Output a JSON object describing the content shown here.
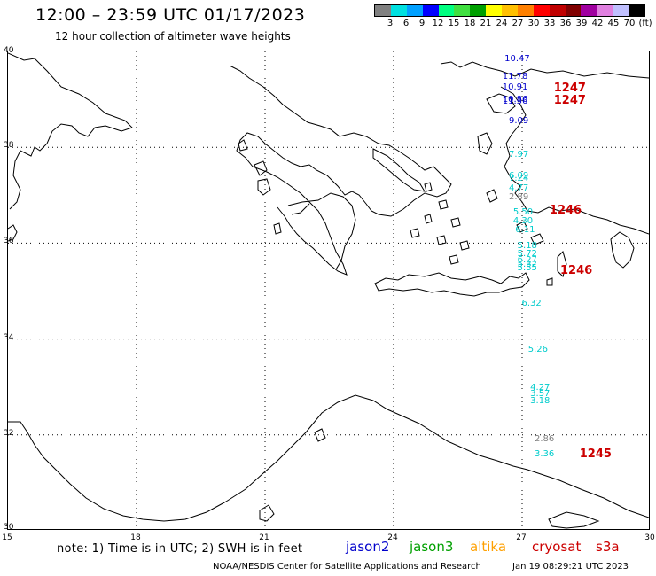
{
  "title": "12:00 – 23:59 UTC 01/17/2023",
  "subtitle": "12 hour collection of altimeter wave heights",
  "colorbar": {
    "colors": [
      "#808080",
      "#00e0e0",
      "#00a0ff",
      "#0000ff",
      "#00ff80",
      "#40e040",
      "#00a000",
      "#ffff00",
      "#ffc000",
      "#ff8000",
      "#ff0000",
      "#c00000",
      "#800000",
      "#a000a0",
      "#e080e0",
      "#c0c0ff",
      "#000000"
    ],
    "labels": [
      "3",
      "6",
      "9",
      "12",
      "15",
      "18",
      "21",
      "24",
      "27",
      "30",
      "33",
      "36",
      "39",
      "42",
      "45",
      "70",
      "(ft)"
    ]
  },
  "axes": {
    "lon_ticks": [
      "15",
      "18",
      "21",
      "24",
      "27",
      "30"
    ],
    "lat_ticks": [
      "40",
      "38",
      "36",
      "34",
      "32",
      "30"
    ]
  },
  "observations": [
    {
      "value": "10.47",
      "color": "#0000cc",
      "lon": 26.9,
      "lat": 39.82
    },
    {
      "value": "11.78",
      "color": "#0000cc",
      "lon": 26.85,
      "lat": 39.45
    },
    {
      "value": "10.91",
      "color": "#0000cc",
      "lon": 26.85,
      "lat": 39.22
    },
    {
      "value": "10.86",
      "color": "#0000cc",
      "lon": 26.85,
      "lat": 38.97
    },
    {
      "value": "11.36",
      "color": "#0000cc",
      "lon": 26.85,
      "lat": 38.92
    },
    {
      "value": "9.09",
      "color": "#0000cc",
      "lon": 27.0,
      "lat": 38.52
    },
    {
      "value": "7.97",
      "color": "#00cccc",
      "lon": 27.0,
      "lat": 37.82
    },
    {
      "value": "6.09",
      "color": "#00cccc",
      "lon": 27.0,
      "lat": 37.38
    },
    {
      "value": "7.24",
      "color": "#00cccc",
      "lon": 27.0,
      "lat": 37.32
    },
    {
      "value": "4.77",
      "color": "#00cccc",
      "lon": 27.0,
      "lat": 37.12
    },
    {
      "value": "2.89",
      "color": "#808080",
      "lon": 27.0,
      "lat": 36.93
    },
    {
      "value": "5.50",
      "color": "#00cccc",
      "lon": 27.1,
      "lat": 36.62
    },
    {
      "value": "4.30",
      "color": "#00cccc",
      "lon": 27.1,
      "lat": 36.44
    },
    {
      "value": "6.11",
      "color": "#00cccc",
      "lon": 27.15,
      "lat": 36.25
    },
    {
      "value": "5.18",
      "color": "#00cccc",
      "lon": 27.2,
      "lat": 35.92
    },
    {
      "value": "5.72",
      "color": "#00cccc",
      "lon": 27.2,
      "lat": 35.75
    },
    {
      "value": "6.27",
      "color": "#00cccc",
      "lon": 27.2,
      "lat": 35.62
    },
    {
      "value": "5.32",
      "color": "#00cccc",
      "lon": 27.2,
      "lat": 35.52
    },
    {
      "value": "5.55",
      "color": "#00cccc",
      "lon": 27.2,
      "lat": 35.45
    },
    {
      "value": "6.32",
      "color": "#00cccc",
      "lon": 27.3,
      "lat": 34.72
    },
    {
      "value": "5.26",
      "color": "#00cccc",
      "lon": 27.45,
      "lat": 33.75
    },
    {
      "value": "4.27",
      "color": "#00cccc",
      "lon": 27.5,
      "lat": 32.95
    },
    {
      "value": "3.57",
      "color": "#00cccc",
      "lon": 27.5,
      "lat": 32.82
    },
    {
      "value": "3.18",
      "color": "#00cccc",
      "lon": 27.5,
      "lat": 32.68
    },
    {
      "value": "2.86",
      "color": "#808080",
      "lon": 27.6,
      "lat": 31.88
    },
    {
      "value": "3.36",
      "color": "#00cccc",
      "lon": 27.6,
      "lat": 31.58
    }
  ],
  "passes": [
    {
      "label": "1247",
      "color": "#cc0000",
      "lon": 28.05,
      "lat": 39.2
    },
    {
      "label": "1247",
      "color": "#cc0000",
      "lon": 28.05,
      "lat": 38.95
    },
    {
      "label": "1246",
      "color": "#cc0000",
      "lon": 27.95,
      "lat": 36.66
    },
    {
      "label": "1246",
      "color": "#cc0000",
      "lon": 28.2,
      "lat": 35.4
    },
    {
      "label": "1245",
      "color": "#cc0000",
      "lon": 28.65,
      "lat": 31.58
    }
  ],
  "note": "note: 1) Time is in UTC; 2) SWH is in feet",
  "legend": [
    {
      "name": "jason2",
      "color": "#0000cc"
    },
    {
      "name": "jason3",
      "color": "#00a000"
    },
    {
      "name": "altika",
      "color": "#ffa000"
    },
    {
      "name": "cryosat",
      "color": "#cc0000"
    },
    {
      "name": "s3a",
      "color": "#cc0000"
    }
  ],
  "footer": "NOAA/NESDIS Center for Satellite Applications and Research",
  "footer_date": "Jan 19 08:29:21 UTC 2023"
}
